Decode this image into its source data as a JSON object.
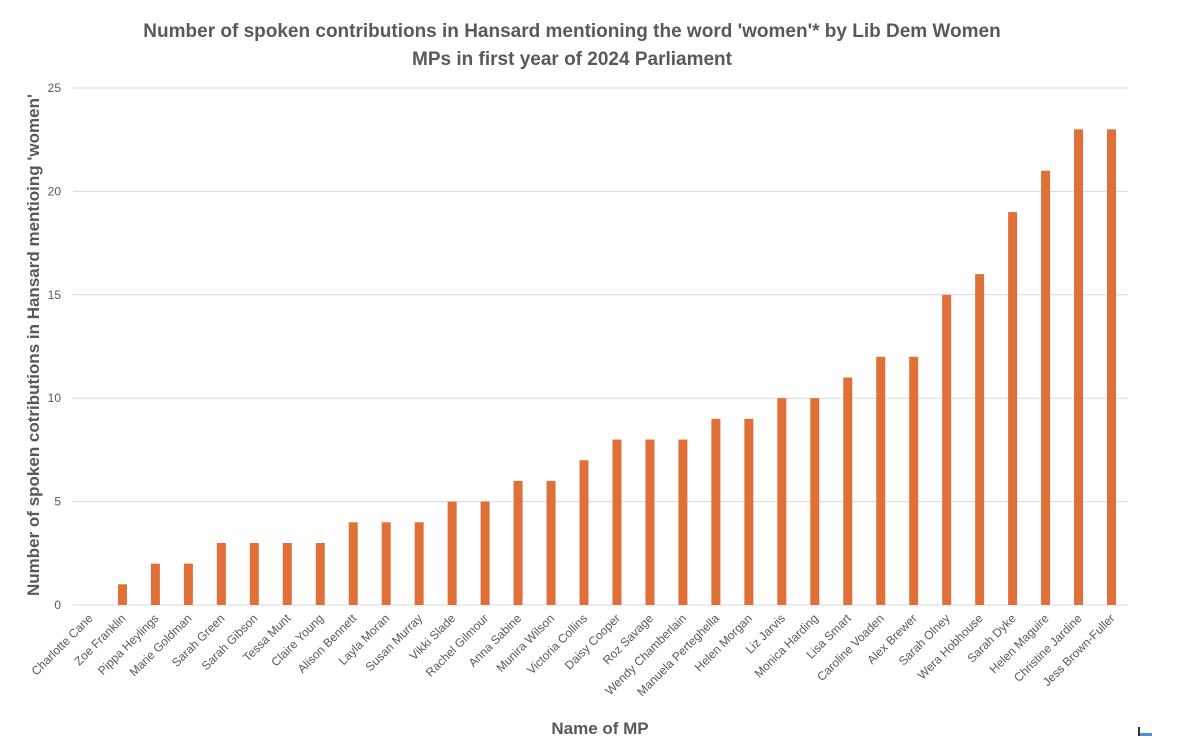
{
  "chart_data": {
    "type": "bar",
    "title_lines": [
      "Number of spoken contributions in Hansard mentioning the word 'women'* by Lib Dem Women",
      "MPs in first year of 2024 Parliament"
    ],
    "xlabel": "Name of MP",
    "ylabel": "Number of spoken cotributions in Hansard mentioing 'women'",
    "ylim": [
      0,
      25
    ],
    "yticks": [
      0,
      5,
      10,
      15,
      20,
      25
    ],
    "grid": true,
    "legend": "none",
    "bar_color": "#E07038",
    "categories": [
      "Charlotte Cane",
      "Zoe Franklin",
      "Pippa Heylings",
      "Marie Goldman",
      "Sarah Green",
      "Sarah Gibson",
      "Tessa Munt",
      "Claire Young",
      "Alison Bennett",
      "Layla Moran",
      "Susan Murray",
      "Vikki Slade",
      "Rachel Gilmour",
      "Anna Sabine",
      "Munira Wilson",
      "Victoria Collins",
      "Daisy Cooper",
      "Roz Savage",
      "Wendy Chamberlain",
      "Manuela Perteghella",
      "Helen Morgan",
      "Liz Jarvis",
      "Monica Harding",
      "Lisa Smart",
      "Caroline Voaden",
      "Alex Brewer",
      "Sarah Olney",
      "Wera Hobhouse",
      "Sarah Dyke",
      "Helen Maguire",
      "Christine Jardine",
      "Jess Brown-Fuller"
    ],
    "values": [
      0,
      1,
      2,
      2,
      3,
      3,
      3,
      3,
      4,
      4,
      4,
      5,
      5,
      6,
      6,
      7,
      8,
      8,
      8,
      9,
      9,
      10,
      10,
      11,
      12,
      12,
      15,
      16,
      19,
      21,
      23,
      23
    ]
  }
}
